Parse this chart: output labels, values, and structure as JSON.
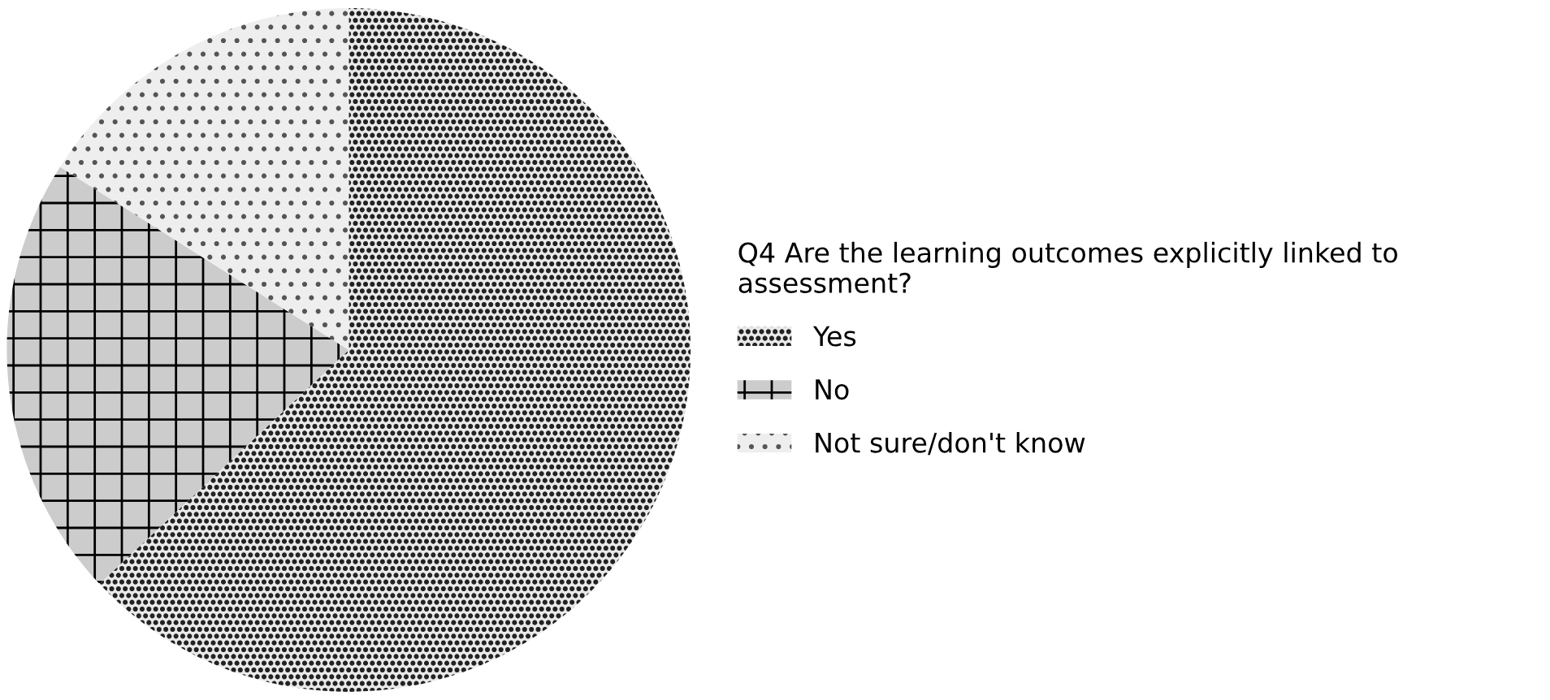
{
  "chart_data": {
    "type": "pie",
    "legend_title": "Q4 Are the learning outcomes explicitly linked to\nassessment?",
    "categories": [
      "Yes",
      "No",
      "Not sure/don't know"
    ],
    "values": [
      63,
      21,
      16
    ],
    "colors": [
      "#222222",
      "#000000",
      "#555555"
    ],
    "legend": "right"
  }
}
